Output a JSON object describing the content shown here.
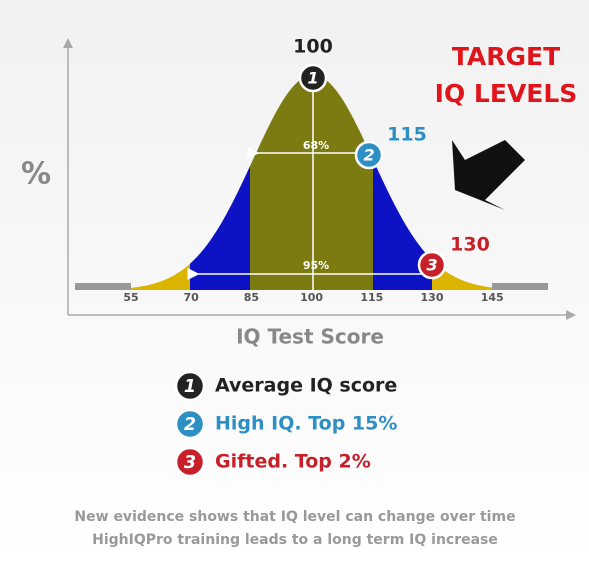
{
  "axis": {
    "y_label": "%",
    "x_label": "IQ Test Score",
    "ticks": [
      "55",
      "70",
      "85",
      "100",
      "115",
      "130",
      "145"
    ]
  },
  "bands": {
    "inner": "68%",
    "outer": "95%"
  },
  "markers": [
    {
      "number": "1",
      "label": "100"
    },
    {
      "number": "2",
      "label": "115"
    },
    {
      "number": "3",
      "label": "130"
    }
  ],
  "target": [
    "TARGET",
    "IQ LEVELS"
  ],
  "legend": [
    {
      "number": "1",
      "text": "Average IQ score"
    },
    {
      "number": "2",
      "text": "High IQ. Top 15%"
    },
    {
      "number": "3",
      "text": "Gifted. Top 2%"
    }
  ],
  "footer": [
    "New evidence shows that IQ level can change over time",
    "HighIQPro training leads to a long term IQ increase"
  ]
}
